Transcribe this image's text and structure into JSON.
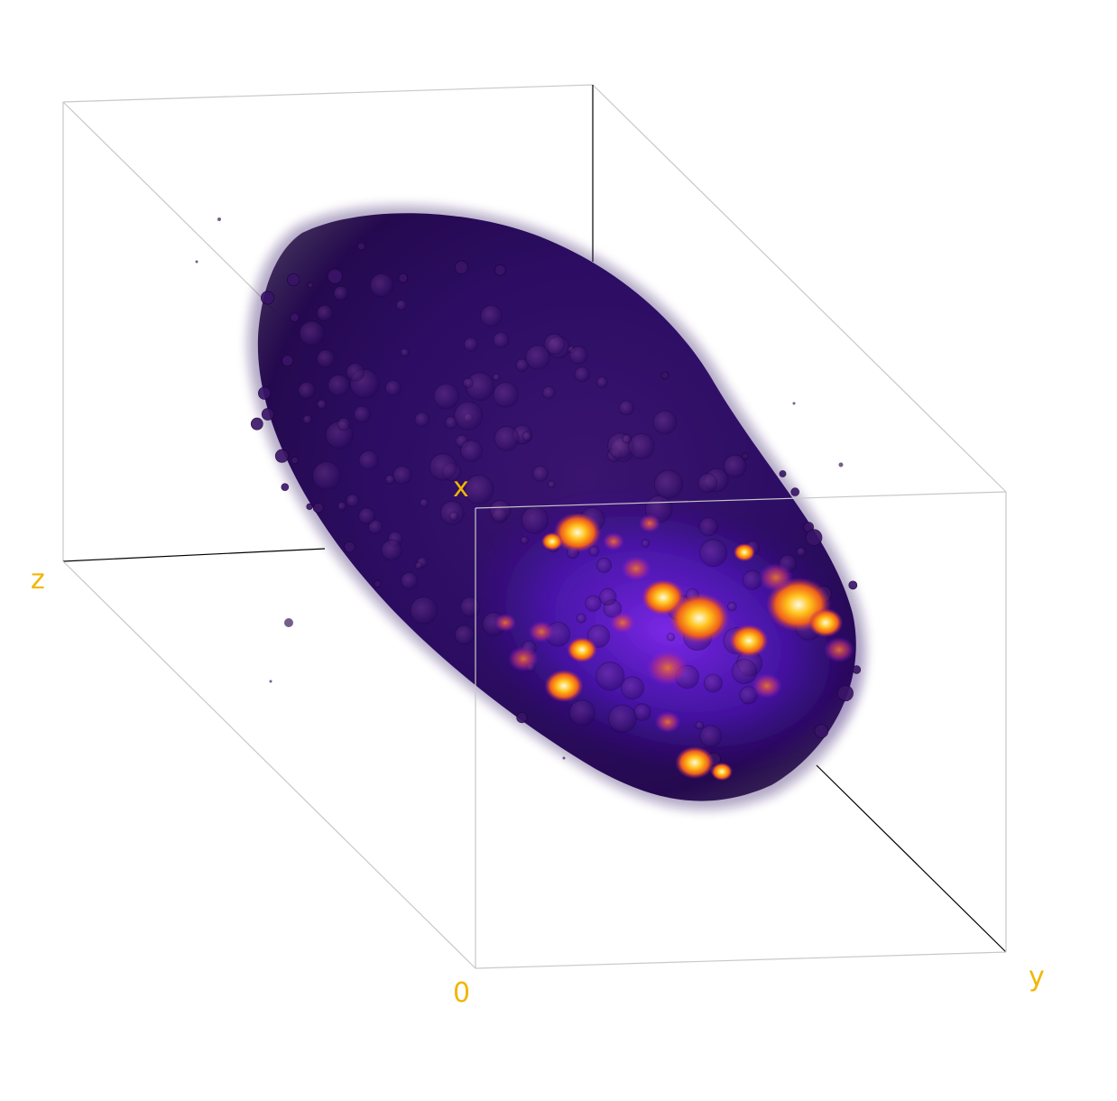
{
  "viewer": {
    "axes": {
      "x_label": "x",
      "y_label": "y",
      "z_label": "z",
      "origin_label": "0"
    },
    "colors": {
      "background": "#ffffff",
      "axis_label": "#f2b600",
      "box_edge_front": "#c8c8c8",
      "box_edge_back": "#000000",
      "colormap": [
        "#1a0033",
        "#2a0a6e",
        "#4b10b0",
        "#7a1fd6",
        "#c23a8a",
        "#f0601a",
        "#ffb000",
        "#fff6c8"
      ]
    },
    "rendering": {
      "type": "3d-volume-render",
      "colormap_name": "gnuplot",
      "bounding_box": true
    }
  }
}
